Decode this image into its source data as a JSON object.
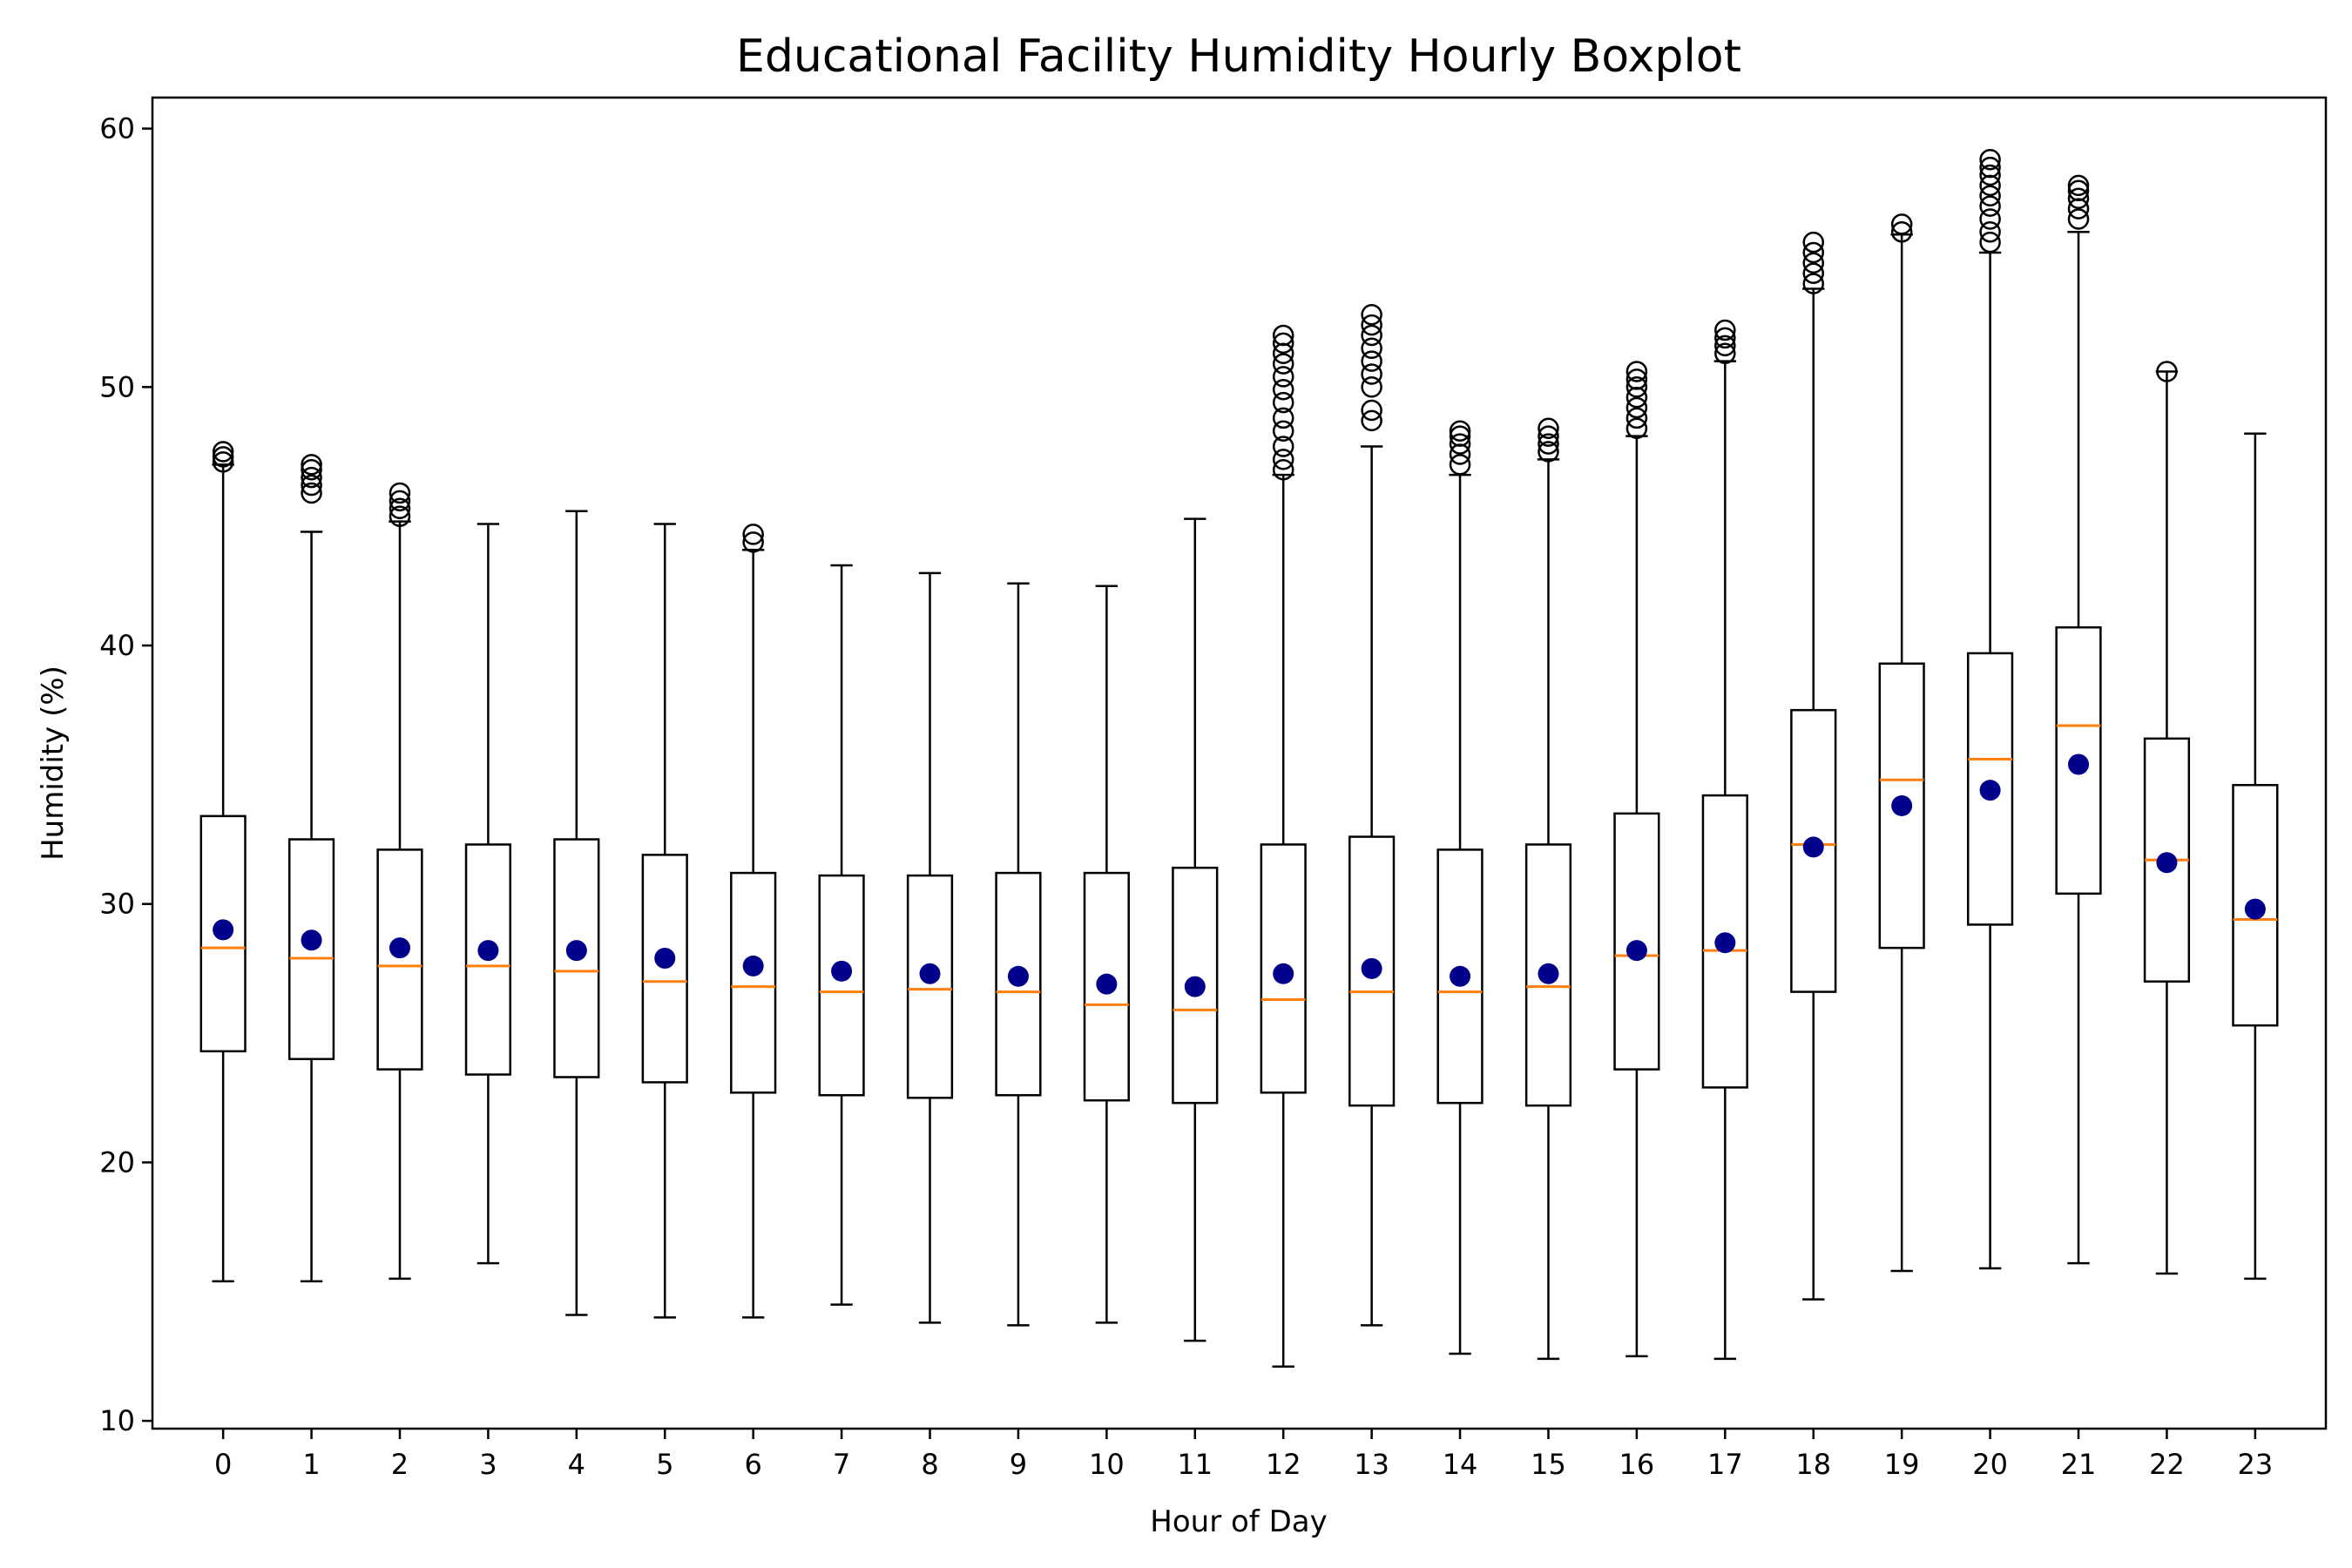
{
  "chart_data": {
    "type": "boxplot",
    "title": "Educational Facility Humidity Hourly Boxplot",
    "xlabel": "Hour of Day",
    "ylabel": "Humidity (%)",
    "ylim": [
      9.7,
      61.2
    ],
    "yticks": [
      10,
      20,
      30,
      40,
      50,
      60
    ],
    "grid": false,
    "colors": {
      "box": "#000000",
      "median": "#ff7f0e",
      "mean": "#00008b",
      "outlier": "#000000"
    },
    "categories": [
      "0",
      "1",
      "2",
      "3",
      "4",
      "5",
      "6",
      "7",
      "8",
      "9",
      "10",
      "11",
      "12",
      "13",
      "14",
      "15",
      "16",
      "17",
      "18",
      "19",
      "20",
      "21",
      "22",
      "23"
    ],
    "boxes": [
      {
        "hour": "0",
        "whisker_low": 15.4,
        "q1": 24.3,
        "median": 28.3,
        "q3": 33.4,
        "whisker_high": 47.0,
        "mean": 29.0,
        "outliers": [
          47.1,
          47.3,
          47.5
        ]
      },
      {
        "hour": "1",
        "whisker_low": 15.4,
        "q1": 24.0,
        "median": 27.9,
        "q3": 32.5,
        "whisker_high": 44.4,
        "mean": 28.6,
        "outliers": [
          45.9,
          46.2,
          46.5,
          46.8,
          47.0
        ]
      },
      {
        "hour": "2",
        "whisker_low": 15.5,
        "q1": 23.6,
        "median": 27.6,
        "q3": 32.1,
        "whisker_high": 44.8,
        "mean": 28.3,
        "outliers": [
          45.0,
          45.3,
          45.6,
          45.9
        ]
      },
      {
        "hour": "3",
        "whisker_low": 16.1,
        "q1": 23.4,
        "median": 27.6,
        "q3": 32.3,
        "whisker_high": 44.7,
        "mean": 28.2,
        "outliers": []
      },
      {
        "hour": "4",
        "whisker_low": 14.1,
        "q1": 23.3,
        "median": 27.4,
        "q3": 32.5,
        "whisker_high": 45.2,
        "mean": 28.2,
        "outliers": []
      },
      {
        "hour": "5",
        "whisker_low": 14.0,
        "q1": 23.1,
        "median": 27.0,
        "q3": 31.9,
        "whisker_high": 44.7,
        "mean": 27.9,
        "outliers": []
      },
      {
        "hour": "6",
        "whisker_low": 14.0,
        "q1": 22.7,
        "median": 26.8,
        "q3": 31.2,
        "whisker_high": 43.7,
        "mean": 27.6,
        "outliers": [
          44.0,
          44.3
        ]
      },
      {
        "hour": "7",
        "whisker_low": 14.5,
        "q1": 22.6,
        "median": 26.6,
        "q3": 31.1,
        "whisker_high": 43.1,
        "mean": 27.4,
        "outliers": []
      },
      {
        "hour": "8",
        "whisker_low": 13.8,
        "q1": 22.5,
        "median": 26.7,
        "q3": 31.1,
        "whisker_high": 42.8,
        "mean": 27.3,
        "outliers": []
      },
      {
        "hour": "9",
        "whisker_low": 13.7,
        "q1": 22.6,
        "median": 26.6,
        "q3": 31.2,
        "whisker_high": 42.4,
        "mean": 27.2,
        "outliers": []
      },
      {
        "hour": "10",
        "whisker_low": 13.8,
        "q1": 22.4,
        "median": 26.1,
        "q3": 31.2,
        "whisker_high": 42.3,
        "mean": 26.9,
        "outliers": []
      },
      {
        "hour": "11",
        "whisker_low": 13.1,
        "q1": 22.3,
        "median": 25.9,
        "q3": 31.4,
        "whisker_high": 44.9,
        "mean": 26.8,
        "outliers": []
      },
      {
        "hour": "12",
        "whisker_low": 12.1,
        "q1": 22.7,
        "median": 26.3,
        "q3": 32.3,
        "whisker_high": 46.6,
        "mean": 27.3,
        "outliers": [
          46.8,
          47.2,
          47.7,
          48.3,
          48.8,
          49.4,
          49.9,
          50.4,
          50.9,
          51.3,
          51.7,
          52.0
        ]
      },
      {
        "hour": "13",
        "whisker_low": 13.7,
        "q1": 22.2,
        "median": 26.6,
        "q3": 32.6,
        "whisker_high": 47.7,
        "mean": 27.5,
        "outliers": [
          48.7,
          49.1,
          50.0,
          50.5,
          51.0,
          51.5,
          52.0,
          52.4,
          52.8
        ]
      },
      {
        "hour": "14",
        "whisker_low": 12.6,
        "q1": 22.3,
        "median": 26.6,
        "q3": 32.1,
        "whisker_high": 46.6,
        "mean": 27.2,
        "outliers": [
          47.0,
          47.4,
          47.8,
          48.1,
          48.3
        ]
      },
      {
        "hour": "15",
        "whisker_low": 12.4,
        "q1": 22.2,
        "median": 26.8,
        "q3": 32.3,
        "whisker_high": 47.2,
        "mean": 27.3,
        "outliers": [
          47.5,
          47.8,
          48.1,
          48.4
        ]
      },
      {
        "hour": "16",
        "whisker_low": 12.5,
        "q1": 23.6,
        "median": 28.0,
        "q3": 33.5,
        "whisker_high": 48.1,
        "mean": 28.2,
        "outliers": [
          48.4,
          48.8,
          49.2,
          49.6,
          50.0,
          50.3,
          50.6
        ]
      },
      {
        "hour": "17",
        "whisker_low": 12.4,
        "q1": 22.9,
        "median": 28.2,
        "q3": 34.2,
        "whisker_high": 51.0,
        "mean": 28.5,
        "outliers": [
          51.3,
          51.6,
          51.9,
          52.2
        ]
      },
      {
        "hour": "18",
        "whisker_low": 14.7,
        "q1": 26.6,
        "median": 32.3,
        "q3": 37.5,
        "whisker_high": 53.8,
        "mean": 32.2,
        "outliers": [
          54.0,
          54.4,
          54.8,
          55.2,
          55.6
        ]
      },
      {
        "hour": "19",
        "whisker_low": 15.8,
        "q1": 28.3,
        "median": 34.8,
        "q3": 39.3,
        "whisker_high": 55.9,
        "mean": 33.8,
        "outliers": [
          56.0,
          56.3
        ]
      },
      {
        "hour": "20",
        "whisker_low": 15.9,
        "q1": 29.2,
        "median": 35.6,
        "q3": 39.7,
        "whisker_high": 55.2,
        "mean": 34.4,
        "outliers": [
          55.6,
          56.0,
          56.5,
          57.0,
          57.4,
          57.8,
          58.2,
          58.5,
          58.8
        ]
      },
      {
        "hour": "21",
        "whisker_low": 16.1,
        "q1": 30.4,
        "median": 36.9,
        "q3": 40.7,
        "whisker_high": 56.0,
        "mean": 35.4,
        "outliers": [
          56.5,
          56.9,
          57.3,
          57.6,
          57.8
        ]
      },
      {
        "hour": "22",
        "whisker_low": 15.7,
        "q1": 27.0,
        "median": 31.7,
        "q3": 36.4,
        "whisker_high": 50.6,
        "mean": 31.6,
        "outliers": [
          50.6
        ]
      },
      {
        "hour": "23",
        "whisker_low": 15.5,
        "q1": 25.3,
        "median": 29.4,
        "q3": 34.6,
        "whisker_high": 48.2,
        "mean": 29.8,
        "outliers": []
      }
    ]
  }
}
